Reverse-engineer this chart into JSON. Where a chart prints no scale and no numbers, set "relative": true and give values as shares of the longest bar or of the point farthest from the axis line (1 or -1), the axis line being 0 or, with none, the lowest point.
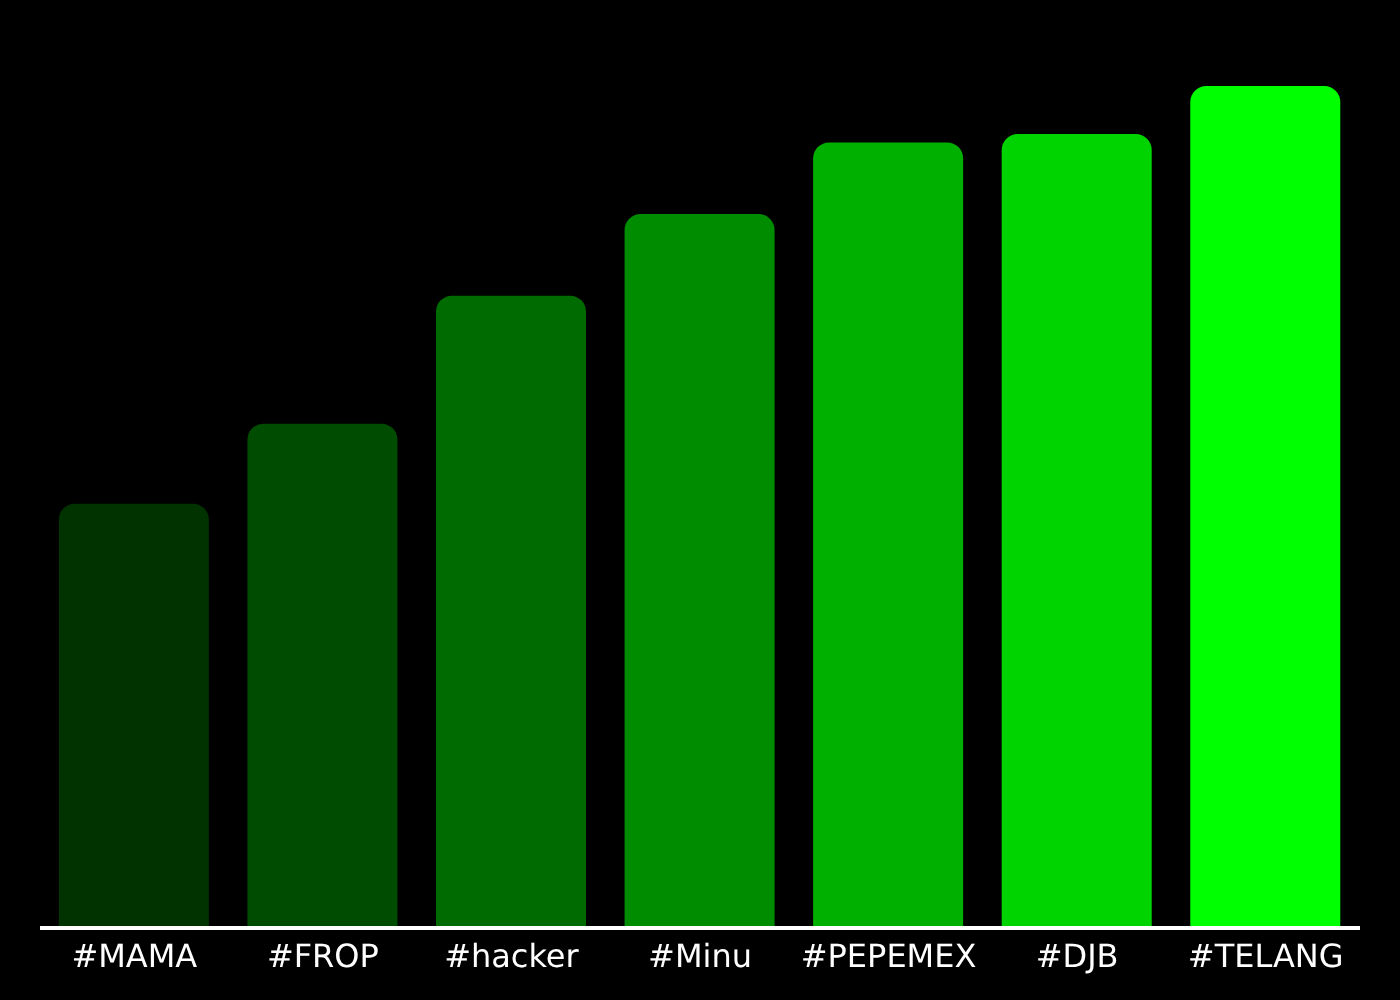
{
  "chart_data": {
    "type": "bar",
    "relative": true,
    "categories": [
      "#MAMA",
      "#FROP",
      "#hacker",
      "#Minu",
      "#PEPEMEX",
      "#DJB",
      "#TELANG"
    ],
    "values": [
      0.504,
      0.599,
      0.751,
      0.848,
      0.933,
      0.943,
      1
    ],
    "colors": [
      "#003300",
      "#004c00",
      "#006b00",
      "#008c00",
      "#00b000",
      "#00d400",
      "#00ff00"
    ],
    "grid": false
  }
}
